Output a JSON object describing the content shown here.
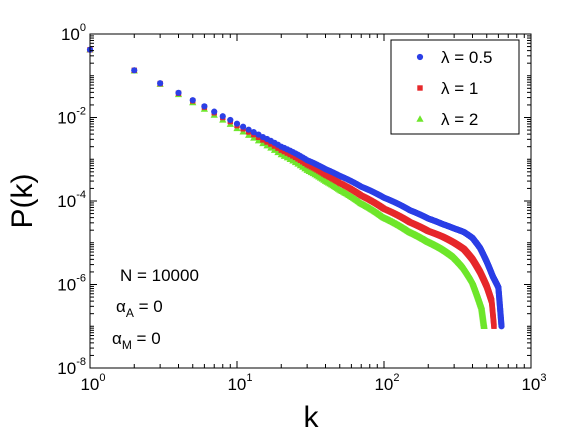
{
  "chart_data": {
    "type": "scatter",
    "x_scale": "log",
    "y_scale": "log",
    "xlim": [
      1,
      1000
    ],
    "ylim": [
      1e-08,
      1
    ],
    "xlabel": "k",
    "ylabel": "P(k)",
    "x_ticks": [
      {
        "base": "10",
        "exp": "0",
        "value": 1
      },
      {
        "base": "10",
        "exp": "1",
        "value": 10
      },
      {
        "base": "10",
        "exp": "2",
        "value": 100
      },
      {
        "base": "10",
        "exp": "3",
        "value": 1000
      }
    ],
    "y_ticks": [
      {
        "base": "10",
        "exp": "0",
        "value": 1
      },
      {
        "base": "10",
        "exp": "-2",
        "value": 0.01
      },
      {
        "base": "10",
        "exp": "-4",
        "value": 0.0001
      },
      {
        "base": "10",
        "exp": "-6",
        "value": 1e-06
      },
      {
        "base": "10",
        "exp": "-8",
        "value": 1e-08
      }
    ],
    "grid": false,
    "legend_position": "top-right",
    "series": [
      {
        "name": "λ = 0.5",
        "color": "#2b3fe6",
        "marker": "circle",
        "points": [
          [
            1,
            0.42
          ],
          [
            2,
            0.135
          ],
          [
            3,
            0.066
          ],
          [
            4,
            0.039
          ],
          [
            5,
            0.026
          ],
          [
            6,
            0.0185
          ],
          [
            7,
            0.0138
          ],
          [
            8,
            0.0107
          ],
          [
            10,
            0.0071
          ],
          [
            12,
            0.0051
          ],
          [
            15,
            0.0034
          ],
          [
            20,
            0.002
          ],
          [
            30,
            0.00095
          ],
          [
            40,
            0.00058
          ],
          [
            50,
            0.0004
          ],
          [
            70,
            0.00022
          ],
          [
            100,
            0.00012
          ],
          [
            150,
            6e-05
          ],
          [
            200,
            3.8e-05
          ],
          [
            250,
            2.8e-05
          ],
          [
            300,
            2.2e-05
          ],
          [
            350,
            1.8e-05
          ],
          [
            400,
            1.3e-05
          ],
          [
            450,
            7.5e-06
          ],
          [
            500,
            3.5e-06
          ],
          [
            550,
            1.55e-06
          ],
          [
            600,
            8.5e-07
          ],
          [
            630,
            1e-07
          ]
        ]
      },
      {
        "name": "λ = 1",
        "color": "#e6282b",
        "marker": "square",
        "points": [
          [
            1,
            0.42
          ],
          [
            2,
            0.135
          ],
          [
            3,
            0.065
          ],
          [
            4,
            0.038
          ],
          [
            5,
            0.025
          ],
          [
            6,
            0.0177
          ],
          [
            7,
            0.013
          ],
          [
            8,
            0.01
          ],
          [
            10,
            0.0064
          ],
          [
            12,
            0.0045
          ],
          [
            15,
            0.0029
          ],
          [
            20,
            0.00165
          ],
          [
            30,
            0.00074
          ],
          [
            40,
            0.00042
          ],
          [
            50,
            0.00027
          ],
          [
            70,
            0.000135
          ],
          [
            100,
            6.5e-05
          ],
          [
            150,
            3.1e-05
          ],
          [
            200,
            1.9e-05
          ],
          [
            250,
            1.4e-05
          ],
          [
            300,
            1e-05
          ],
          [
            350,
            7e-06
          ],
          [
            400,
            4e-06
          ],
          [
            450,
            2e-06
          ],
          [
            500,
            9e-07
          ],
          [
            540,
            4e-07
          ],
          [
            560,
            1e-07
          ]
        ]
      },
      {
        "name": "λ = 2",
        "color": "#6ee62b",
        "marker": "triangle",
        "points": [
          [
            1,
            0.42
          ],
          [
            2,
            0.132
          ],
          [
            3,
            0.063
          ],
          [
            4,
            0.036
          ],
          [
            5,
            0.023
          ],
          [
            6,
            0.016
          ],
          [
            7,
            0.0115
          ],
          [
            8,
            0.0088
          ],
          [
            10,
            0.0055
          ],
          [
            12,
            0.0038
          ],
          [
            15,
            0.0024
          ],
          [
            20,
            0.0013
          ],
          [
            30,
            0.00055
          ],
          [
            40,
            0.0003
          ],
          [
            50,
            0.000185
          ],
          [
            70,
            8.8e-05
          ],
          [
            100,
            4e-05
          ],
          [
            150,
            1.8e-05
          ],
          [
            200,
            1.05e-05
          ],
          [
            250,
            7e-06
          ],
          [
            300,
            4.5e-06
          ],
          [
            350,
            2.5e-06
          ],
          [
            400,
            1.2e-06
          ],
          [
            430,
            6e-07
          ],
          [
            460,
            3e-07
          ],
          [
            480,
            1e-07
          ]
        ]
      }
    ],
    "annotations": [
      {
        "text": "N = 10000"
      },
      {
        "symbol": "α",
        "sub": "A",
        "rest": " = 0"
      },
      {
        "symbol": "α",
        "sub": "M",
        "rest": " = 0"
      }
    ]
  }
}
